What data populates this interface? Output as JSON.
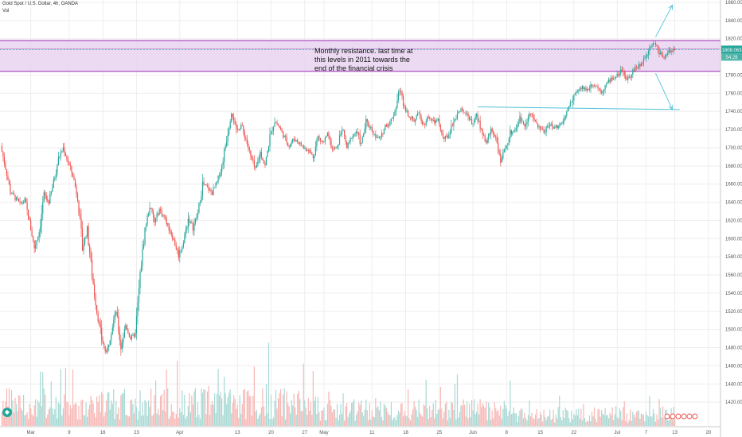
{
  "chart_data": {
    "type": "candlestick",
    "symbol_line": "Gold Spot / U.S. Dollar, 4h, OANDA",
    "volume_label": "Vol",
    "ylim": [
      1400,
      1860
    ],
    "y_ticks": [
      1420,
      1440,
      1460,
      1480,
      1500,
      1520,
      1540,
      1560,
      1580,
      1600,
      1620,
      1640,
      1660,
      1680,
      1700,
      1720,
      1740,
      1760,
      1780,
      1800,
      1820,
      1840,
      1860
    ],
    "y_tick_labels": [
      "1420.000",
      "1440.000",
      "1460.000",
      "1480.000",
      "1500.000",
      "1520.000",
      "1540.000",
      "1560.000",
      "1580.000",
      "1600.000",
      "1620.000",
      "1640.000",
      "1660.000",
      "1680.000",
      "1700.000",
      "1720.000",
      "1740.000",
      "1760.000",
      "1780.000",
      "1800.000",
      "1820.000",
      "1840.000",
      "1860.000"
    ],
    "x_ticks": [
      {
        "label": "Mar",
        "day": 0
      },
      {
        "label": "9",
        "day": 8
      },
      {
        "label": "16",
        "day": 15
      },
      {
        "label": "23",
        "day": 22
      },
      {
        "label": "Apr",
        "day": 31
      },
      {
        "label": "13",
        "day": 43
      },
      {
        "label": "20",
        "day": 50
      },
      {
        "label": "27",
        "day": 57
      },
      {
        "label": "May",
        "day": 61
      },
      {
        "label": "11",
        "day": 71
      },
      {
        "label": "18",
        "day": 78
      },
      {
        "label": "25",
        "day": 85
      },
      {
        "label": "Jun",
        "day": 92
      },
      {
        "label": "8",
        "day": 99
      },
      {
        "label": "15",
        "day": 106
      },
      {
        "label": "22",
        "day": 113
      },
      {
        "label": "Jul",
        "day": 122
      },
      {
        "label": "7",
        "day": 128
      },
      {
        "label": "13",
        "day": 134
      },
      {
        "label": "20",
        "day": 141
      }
    ],
    "day_range": [
      -6.4,
      143.5
    ],
    "price_path": [
      [
        -6,
        1702
      ],
      [
        -5,
        1678
      ],
      [
        -4,
        1652
      ],
      [
        -3,
        1645
      ],
      [
        -2,
        1638
      ],
      [
        -1,
        1642
      ],
      [
        0,
        1618
      ],
      [
        1,
        1590
      ],
      [
        2,
        1608
      ],
      [
        3,
        1648
      ],
      [
        4,
        1640
      ],
      [
        5,
        1662
      ],
      [
        6,
        1688
      ],
      [
        7,
        1700
      ],
      [
        8,
        1684
      ],
      [
        9,
        1670
      ],
      [
        10,
        1645
      ],
      [
        11,
        1590
      ],
      [
        12,
        1610
      ],
      [
        13,
        1560
      ],
      [
        14,
        1520
      ],
      [
        15,
        1490
      ],
      [
        16,
        1472
      ],
      [
        17,
        1500
      ],
      [
        18,
        1520
      ],
      [
        19,
        1480
      ],
      [
        20,
        1505
      ],
      [
        21,
        1490
      ],
      [
        22,
        1495
      ],
      [
        23,
        1560
      ],
      [
        24,
        1610
      ],
      [
        25,
        1636
      ],
      [
        26,
        1618
      ],
      [
        27,
        1632
      ],
      [
        28,
        1624
      ],
      [
        29,
        1612
      ],
      [
        30,
        1598
      ],
      [
        31,
        1582
      ],
      [
        32,
        1596
      ],
      [
        33,
        1622
      ],
      [
        34,
        1612
      ],
      [
        35,
        1628
      ],
      [
        36,
        1660
      ],
      [
        37,
        1656
      ],
      [
        38,
        1650
      ],
      [
        39,
        1662
      ],
      [
        40,
        1680
      ],
      [
        41,
        1710
      ],
      [
        42,
        1742
      ],
      [
        43,
        1718
      ],
      [
        44,
        1725
      ],
      [
        45,
        1710
      ],
      [
        46,
        1690
      ],
      [
        47,
        1675
      ],
      [
        48,
        1695
      ],
      [
        49,
        1680
      ],
      [
        50,
        1712
      ],
      [
        51,
        1730
      ],
      [
        52,
        1722
      ],
      [
        53,
        1712
      ],
      [
        54,
        1702
      ],
      [
        55,
        1710
      ],
      [
        56,
        1706
      ],
      [
        57,
        1700
      ],
      [
        58,
        1698
      ],
      [
        59,
        1690
      ],
      [
        60,
        1712
      ],
      [
        61,
        1705
      ],
      [
        62,
        1714
      ],
      [
        63,
        1698
      ],
      [
        64,
        1700
      ],
      [
        65,
        1722
      ],
      [
        66,
        1700
      ],
      [
        67,
        1712
      ],
      [
        68,
        1718
      ],
      [
        69,
        1704
      ],
      [
        70,
        1728
      ],
      [
        71,
        1722
      ],
      [
        72,
        1712
      ],
      [
        73,
        1710
      ],
      [
        74,
        1724
      ],
      [
        75,
        1728
      ],
      [
        76,
        1740
      ],
      [
        77,
        1765
      ],
      [
        78,
        1745
      ],
      [
        79,
        1735
      ],
      [
        80,
        1730
      ],
      [
        81,
        1738
      ],
      [
        82,
        1725
      ],
      [
        83,
        1735
      ],
      [
        84,
        1728
      ],
      [
        85,
        1730
      ],
      [
        86,
        1710
      ],
      [
        87,
        1712
      ],
      [
        88,
        1726
      ],
      [
        89,
        1738
      ],
      [
        90,
        1742
      ],
      [
        91,
        1738
      ],
      [
        92,
        1726
      ],
      [
        93,
        1735
      ],
      [
        94,
        1720
      ],
      [
        95,
        1705
      ],
      [
        96,
        1720
      ],
      [
        97,
        1712
      ],
      [
        98,
        1684
      ],
      [
        99,
        1700
      ],
      [
        100,
        1716
      ],
      [
        101,
        1720
      ],
      [
        102,
        1732
      ],
      [
        103,
        1725
      ],
      [
        104,
        1738
      ],
      [
        105,
        1730
      ],
      [
        106,
        1722
      ],
      [
        107,
        1718
      ],
      [
        108,
        1726
      ],
      [
        109,
        1722
      ],
      [
        110,
        1724
      ],
      [
        111,
        1730
      ],
      [
        112,
        1742
      ],
      [
        113,
        1756
      ],
      [
        114,
        1762
      ],
      [
        115,
        1766
      ],
      [
        116,
        1764
      ],
      [
        117,
        1770
      ],
      [
        118,
        1768
      ],
      [
        119,
        1762
      ],
      [
        120,
        1770
      ],
      [
        121,
        1776
      ],
      [
        122,
        1778
      ],
      [
        123,
        1784
      ],
      [
        124,
        1776
      ],
      [
        125,
        1780
      ],
      [
        126,
        1788
      ],
      [
        127,
        1790
      ],
      [
        128,
        1800
      ],
      [
        129,
        1812
      ],
      [
        130,
        1816
      ],
      [
        131,
        1805
      ],
      [
        132,
        1800
      ],
      [
        133,
        1806
      ],
      [
        134,
        1808
      ]
    ],
    "current_price_label": "1808.063",
    "current_price": 1808.063,
    "countdown_label": "54:29",
    "resistance_zone": {
      "from": 1784,
      "to": 1818,
      "mid": 1809
    },
    "support_line": {
      "day_start": 93,
      "day_end": 135,
      "price_start": 1745,
      "price_end": 1742
    },
    "arrows": [
      {
        "day_start": 130,
        "price_start": 1822,
        "day_end": 133.5,
        "price_end": 1857
      },
      {
        "day_start": 130,
        "price_start": 1782,
        "day_end": 133.5,
        "price_end": 1742
      }
    ],
    "annotation_lines": [
      "Monthly resistance. last time at",
      "this levels in 2011 towards the",
      "end of the financial crisis"
    ],
    "colors": {
      "up": "#26a69a",
      "down": "#ef5350",
      "vol_up": "#a7d9d4",
      "vol_down": "#f7b7b5",
      "zone_fill": "#e8d3f0",
      "zone_line": "#9c27b0",
      "trend_line": "#4fc3d7",
      "price_tag": "#26a69a",
      "grid": "#eeeeee"
    }
  }
}
